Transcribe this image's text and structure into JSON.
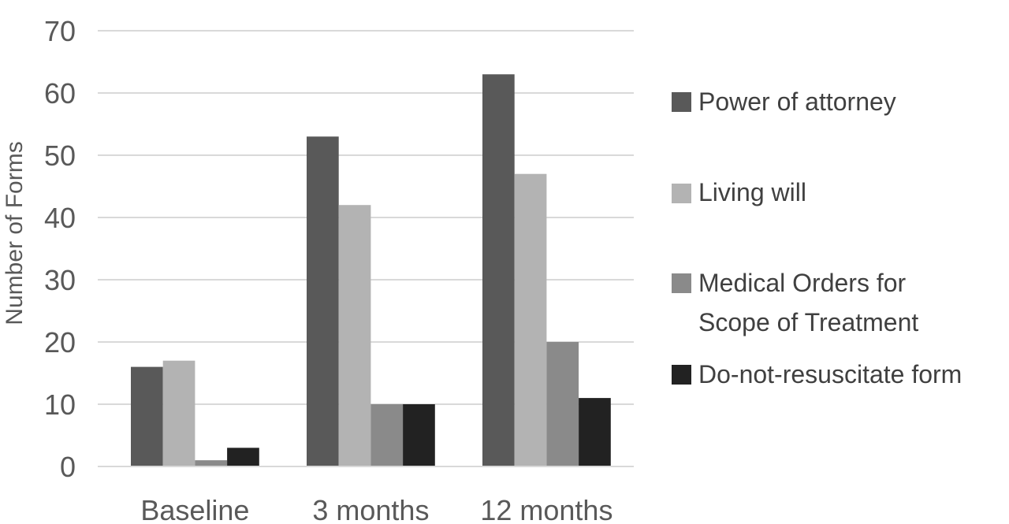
{
  "chart_data": {
    "type": "bar",
    "title": "",
    "xlabel": "",
    "ylabel": "Number of Forms",
    "categories": [
      "Baseline",
      "3 months",
      "12 months"
    ],
    "series": [
      {
        "name": "Power of attorney",
        "values": [
          16,
          53,
          63
        ],
        "color": "#595959"
      },
      {
        "name": "Living will",
        "values": [
          17,
          42,
          47
        ],
        "color": "#b3b3b3"
      },
      {
        "name": "Medical Orders for Scope of Treatment",
        "name_lines": [
          "Medical Orders for",
          "Scope of Treatment"
        ],
        "values": [
          1,
          10,
          20
        ],
        "color": "#8a8a8a"
      },
      {
        "name": "Do-not-resuscitate form",
        "values": [
          3,
          10,
          11
        ],
        "color": "#222222"
      }
    ],
    "yticks": [
      0,
      10,
      20,
      30,
      40,
      50,
      60,
      70
    ],
    "ylim": [
      0,
      75
    ],
    "grid": true,
    "gridline_color": "#d9d9d9",
    "legend_position": "right"
  }
}
